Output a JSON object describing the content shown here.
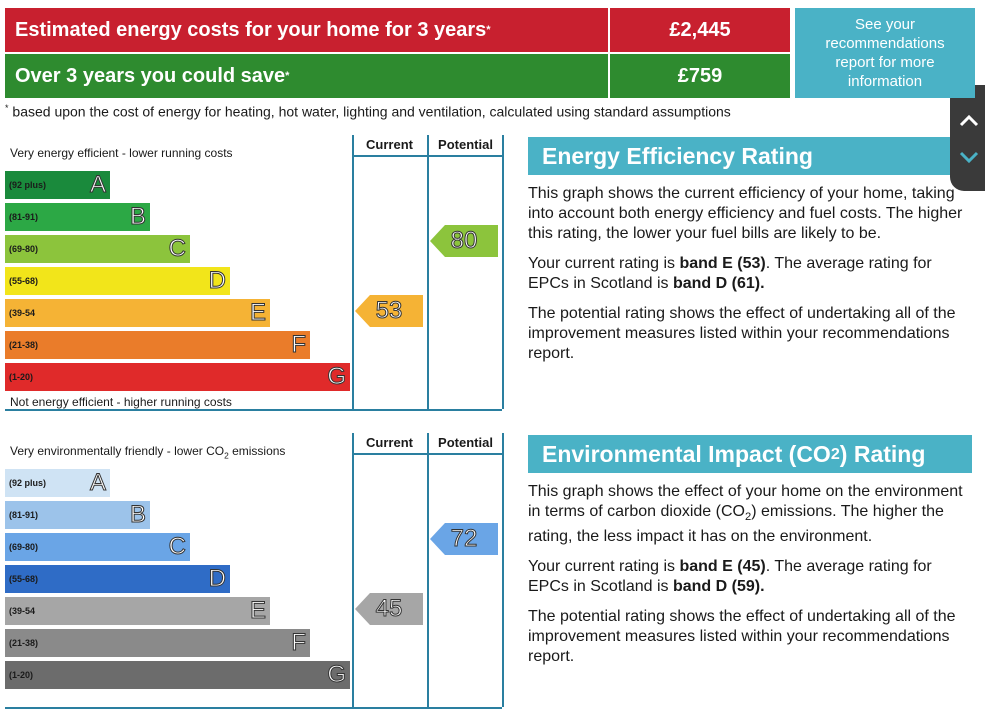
{
  "summary": {
    "rows": [
      {
        "label": "Estimated energy costs for your home for 3 years",
        "mark": "*",
        "value": "£2,445",
        "color": "#c8202f",
        "value_color": "#c8202f"
      },
      {
        "label": "Over 3 years you could save",
        "mark": "*",
        "value": "£759",
        "color": "#2e8b2f",
        "value_color": "#2e8b2f"
      }
    ],
    "link": "See your recommendations report for more information",
    "footnote_mark": "*",
    "footnote": "based upon the cost of energy for heating, hot water, lighting and ventilation, calculated using standard assumptions"
  },
  "ratings": [
    {
      "top_label": [
        {
          "text": "Very energy efficient - lower running costs",
          "style": "plain"
        }
      ],
      "bottom_label": "Not energy efficient - higher running costs",
      "columns": [
        "Current",
        "Potential"
      ],
      "bands": [
        {
          "range": "(92 plus)",
          "letter": "A",
          "color": "#1a8a3c"
        },
        {
          "range": "(81-91)",
          "letter": "B",
          "color": "#2ca845"
        },
        {
          "range": "(69-80)",
          "letter": "C",
          "color": "#8cc43c"
        },
        {
          "range": "(55-68)",
          "letter": "D",
          "color": "#f2e51a"
        },
        {
          "range": "(39-54",
          "letter": "E",
          "color": "#f5b335"
        },
        {
          "range": "(21-38)",
          "letter": "F",
          "color": "#ea7c2a"
        },
        {
          "range": "(1-20)",
          "letter": "G",
          "color": "#e02a2a"
        }
      ],
      "current": {
        "value": "53",
        "color": "#f5b335"
      },
      "potential": {
        "value": "80",
        "color": "#8cc43c"
      },
      "heading": [
        {
          "text": "Energy Efficiency Rating",
          "style": "plain"
        }
      ],
      "paragraphs": [
        [
          {
            "text": "This graph shows the current efficiency of your home, taking into account both energy efficiency and fuel costs. The higher this rating, the lower your fuel bills are likely to be.",
            "style": "plain"
          }
        ],
        [
          {
            "text": "Your current rating is ",
            "style": "plain"
          },
          {
            "text": "band E (53)",
            "style": "bold"
          },
          {
            "text": ". The average rating for EPCs in Scotland is ",
            "style": "plain"
          },
          {
            "text": "band D (61).",
            "style": "bold"
          }
        ],
        [
          {
            "text": "The potential rating shows the effect of undertaking all of the improvement measures listed within your recommendations report.",
            "style": "plain"
          }
        ]
      ]
    },
    {
      "top_label": [
        {
          "text": "Very environmentally friendly - lower CO",
          "style": "plain"
        },
        {
          "text": "2",
          "style": "sub"
        },
        {
          "text": " emissions",
          "style": "plain"
        }
      ],
      "columns": [
        "Current",
        "Potential"
      ],
      "bands": [
        {
          "range": "(92 plus)",
          "letter": "A",
          "color": "#cfe3f4"
        },
        {
          "range": "(81-91)",
          "letter": "B",
          "color": "#9cc3ea"
        },
        {
          "range": "(69-80)",
          "letter": "C",
          "color": "#6aa5e6"
        },
        {
          "range": "(55-68)",
          "letter": "D",
          "color": "#2f6cc6"
        },
        {
          "range": "(39-54",
          "letter": "E",
          "color": "#a6a6a6"
        },
        {
          "range": "(21-38)",
          "letter": "F",
          "color": "#8a8a8a"
        },
        {
          "range": "(1-20)",
          "letter": "G",
          "color": "#6c6c6c"
        }
      ],
      "current": {
        "value": "45",
        "color": "#a6a6a6"
      },
      "potential": {
        "value": "72",
        "color": "#6aa5e6"
      },
      "heading": [
        {
          "text": "Environmental Impact (CO",
          "style": "plain"
        },
        {
          "text": "2",
          "style": "sub"
        },
        {
          "text": ") Rating",
          "style": "plain"
        }
      ],
      "paragraphs": [
        [
          {
            "text": "This graph shows the effect of your home on the environment in terms of carbon dioxide (CO",
            "style": "plain"
          },
          {
            "text": "2",
            "style": "sub"
          },
          {
            "text": ") emissions. The higher the rating, the less impact it has on the environment.",
            "style": "plain"
          }
        ],
        [
          {
            "text": "Your current rating is ",
            "style": "plain"
          },
          {
            "text": "band E (45)",
            "style": "bold"
          },
          {
            "text": ". The average rating for EPCs in Scotland is ",
            "style": "plain"
          },
          {
            "text": "band D (59).",
            "style": "bold"
          }
        ],
        [
          {
            "text": "The potential rating shows the effect of undertaking all of the improvement measures listed within your recommendations report.",
            "style": "plain"
          }
        ]
      ]
    }
  ]
}
